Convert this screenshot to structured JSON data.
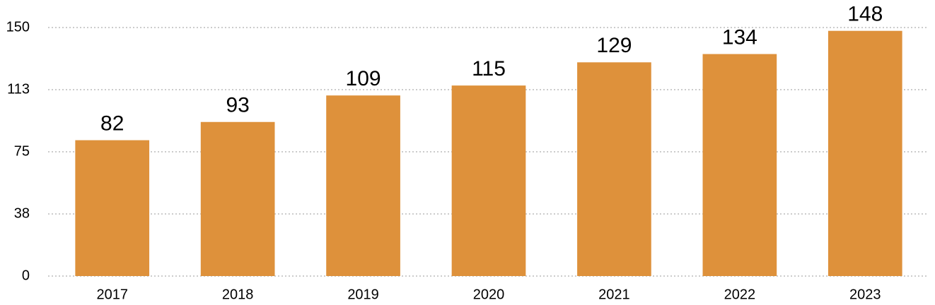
{
  "chart_data": {
    "type": "bar",
    "categories": [
      "2017",
      "2018",
      "2019",
      "2020",
      "2021",
      "2022",
      "2023"
    ],
    "values": [
      82,
      93,
      109,
      115,
      129,
      134,
      148
    ],
    "color": "#de913b",
    "ylim": [
      0,
      150
    ],
    "yticks": [
      0,
      {
        "value": 37.5,
        "label": "38"
      },
      75,
      {
        "value": 112.5,
        "label": "113"
      },
      150
    ],
    "grid": true
  }
}
